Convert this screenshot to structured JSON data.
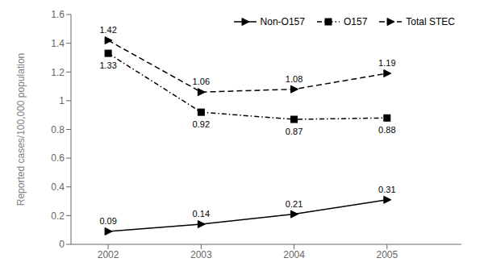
{
  "chart_data": {
    "type": "line",
    "x": [
      2002,
      2003,
      2004,
      2005
    ],
    "series": [
      {
        "name": "Non-O157",
        "color": "#000000",
        "line_style": "solid",
        "marker": "triangle-right",
        "values": [
          0.09,
          0.14,
          0.21,
          0.31
        ]
      },
      {
        "name": "O157",
        "color": "#000000",
        "line_style": "dashdot",
        "marker": "square",
        "values": [
          1.33,
          0.92,
          0.87,
          0.88
        ]
      },
      {
        "name": "Total STEC",
        "color": "#000000",
        "line_style": "dashed",
        "marker": "triangle-right",
        "values": [
          1.42,
          1.06,
          1.08,
          1.19
        ]
      }
    ],
    "ylabel": "Reported cases/100,000 population",
    "xlim": [
      2001.6,
      2005.8
    ],
    "xticks": [
      2002,
      2003,
      2004,
      2005
    ],
    "ylim": [
      0,
      1.6
    ],
    "yticks": [
      0,
      0.2,
      0.4,
      0.6,
      0.8,
      1,
      1.2,
      1.4,
      1.6
    ],
    "grid": false,
    "legend": "upper right",
    "data_labels": true
  }
}
